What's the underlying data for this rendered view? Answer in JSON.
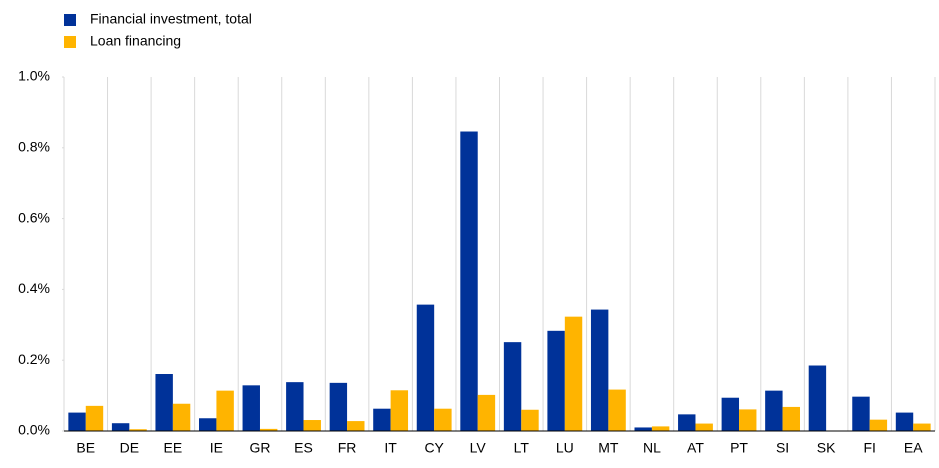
{
  "chart_data": {
    "type": "bar",
    "categories": [
      "BE",
      "DE",
      "EE",
      "IE",
      "GR",
      "ES",
      "FR",
      "IT",
      "CY",
      "LV",
      "LT",
      "LU",
      "MT",
      "NL",
      "AT",
      "PT",
      "SI",
      "SK",
      "FI",
      "EA"
    ],
    "series": [
      {
        "name": "Financial investment, total",
        "color": "#003299",
        "values": [
          0.052,
          0.022,
          0.161,
          0.036,
          0.129,
          0.138,
          0.136,
          0.063,
          0.357,
          0.846,
          0.251,
          0.283,
          0.343,
          0.01,
          0.047,
          0.094,
          0.114,
          0.185,
          0.097,
          0.052
        ]
      },
      {
        "name": "Loan financing",
        "color": "#ffb400",
        "values": [
          0.071,
          0.005,
          0.077,
          0.114,
          0.006,
          0.031,
          0.028,
          0.115,
          0.063,
          0.102,
          0.06,
          0.323,
          0.117,
          0.013,
          0.021,
          0.061,
          0.068,
          0.0,
          0.032,
          0.021
        ]
      }
    ],
    "ylim": [
      0,
      1
    ],
    "yticks": [
      {
        "value": 0,
        "label": "0.0%"
      },
      {
        "value": 0.2,
        "label": "0.2%"
      },
      {
        "value": 0.4,
        "label": "0.4%"
      },
      {
        "value": 0.6,
        "label": "0.6%"
      },
      {
        "value": 0.8,
        "label": "0.8%"
      },
      {
        "value": 1,
        "label": "1.0%"
      }
    ],
    "grid": true,
    "legend": "top-left"
  }
}
